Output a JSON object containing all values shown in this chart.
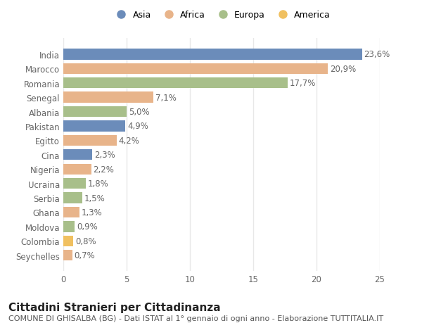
{
  "countries": [
    "India",
    "Marocco",
    "Romania",
    "Senegal",
    "Albania",
    "Pakistan",
    "Egitto",
    "Cina",
    "Nigeria",
    "Ucraina",
    "Serbia",
    "Ghana",
    "Moldova",
    "Colombia",
    "Seychelles"
  ],
  "values": [
    23.6,
    20.9,
    17.7,
    7.1,
    5.0,
    4.9,
    4.2,
    2.3,
    2.2,
    1.8,
    1.5,
    1.3,
    0.9,
    0.8,
    0.7
  ],
  "labels": [
    "23,6%",
    "20,9%",
    "17,7%",
    "7,1%",
    "5,0%",
    "4,9%",
    "4,2%",
    "2,3%",
    "2,2%",
    "1,8%",
    "1,5%",
    "1,3%",
    "0,9%",
    "0,8%",
    "0,7%"
  ],
  "continents": [
    "Asia",
    "Africa",
    "Europa",
    "Africa",
    "Europa",
    "Asia",
    "Africa",
    "Asia",
    "Africa",
    "Europa",
    "Europa",
    "Africa",
    "Europa",
    "America",
    "Africa"
  ],
  "continent_colors": {
    "Asia": "#6b8cba",
    "Africa": "#e8b48a",
    "Europa": "#a8bf8a",
    "America": "#f0c060"
  },
  "legend_order": [
    "Asia",
    "Africa",
    "Europa",
    "America"
  ],
  "xlim": [
    0,
    25
  ],
  "xticks": [
    0,
    5,
    10,
    15,
    20,
    25
  ],
  "title": "Cittadini Stranieri per Cittadinanza",
  "subtitle": "COMUNE DI GHISALBA (BG) - Dati ISTAT al 1° gennaio di ogni anno - Elaborazione TUTTITALIA.IT",
  "bg_color": "#ffffff",
  "plot_bg_color": "#ffffff",
  "grid_color": "#e8e8e8",
  "label_color": "#666666",
  "label_fontsize": 8.5,
  "tick_fontsize": 8.5,
  "title_fontsize": 11,
  "subtitle_fontsize": 8
}
